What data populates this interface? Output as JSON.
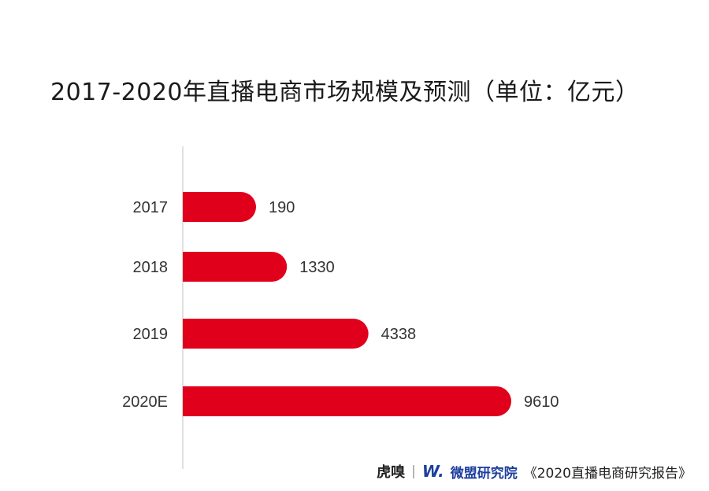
{
  "chart_data": {
    "type": "bar",
    "orientation": "horizontal",
    "title": "2017-2020年直播电商市场规模及预测（单位：亿元）",
    "categories": [
      "2017",
      "2018",
      "2019",
      "2020E"
    ],
    "values": [
      190,
      1330,
      4338,
      9610
    ],
    "xlim": [
      0,
      9610
    ],
    "grid": false,
    "bar_color": "#e0001b",
    "axis_color": "#cccccc"
  },
  "footer": {
    "brand1": "虎嗅",
    "separator": "|",
    "logo_mark": "W.",
    "brand2": "微盟研究院",
    "report": "《2020直播电商研究报告》"
  }
}
